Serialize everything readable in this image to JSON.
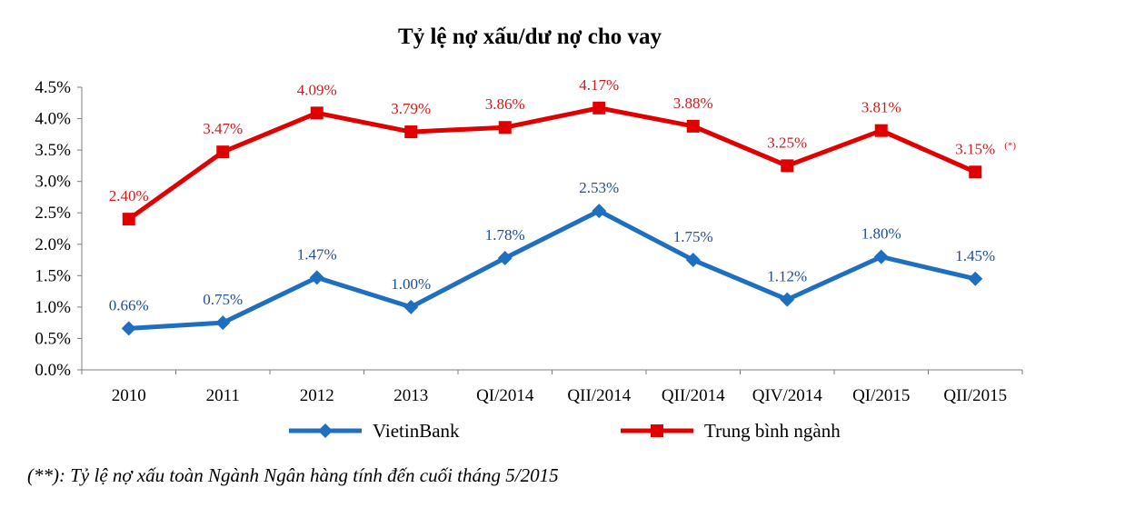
{
  "chart_data": {
    "type": "line",
    "title": "Tỷ lệ nợ xấu/dư nợ cho vay",
    "xlabel": "",
    "ylabel": "",
    "ylim": [
      0,
      4.5
    ],
    "y_ticks": [
      "0.0%",
      "0.5%",
      "1.0%",
      "1.5%",
      "2.0%",
      "2.5%",
      "3.0%",
      "3.5%",
      "4.0%",
      "4.5%"
    ],
    "y_tick_values": [
      0,
      0.5,
      1.0,
      1.5,
      2.0,
      2.5,
      3.0,
      3.5,
      4.0,
      4.5
    ],
    "grid": false,
    "categories": [
      "2010",
      "2011",
      "2012",
      "2013",
      "QI/2014",
      "QII/2014",
      "QII/2014",
      "QIV/2014",
      "QI/2015",
      "QII/2015"
    ],
    "series": [
      {
        "name": "VietinBank",
        "color": "#1f6fc0",
        "marker": "diamond",
        "values": [
          0.66,
          0.75,
          1.47,
          1.0,
          1.78,
          2.53,
          1.75,
          1.12,
          1.8,
          1.45
        ],
        "labels": [
          "0.66%",
          "0.75%",
          "1.47%",
          "1.00%",
          "1.78%",
          "2.53%",
          "1.75%",
          "1.12%",
          "1.80%",
          "1.45%"
        ]
      },
      {
        "name": "Trung bình ngành",
        "color": "#e00000",
        "marker": "square",
        "values": [
          2.4,
          3.47,
          4.09,
          3.79,
          3.86,
          4.17,
          3.88,
          3.25,
          3.81,
          3.15
        ],
        "labels": [
          "2.40%",
          "3.47%",
          "4.09%",
          "3.79%",
          "3.86%",
          "4.17%",
          "3.88%",
          "3.25%",
          "3.81%",
          "3.15%"
        ]
      }
    ],
    "annotations": [
      {
        "text": "(*)",
        "attached_to": "Trung bình ngành QII/2015"
      }
    ],
    "legend_position": "bottom",
    "footnote": "(**): Tỷ lệ nợ xấu toàn Ngành Ngân hàng tính đến cuối tháng 5/2015"
  }
}
